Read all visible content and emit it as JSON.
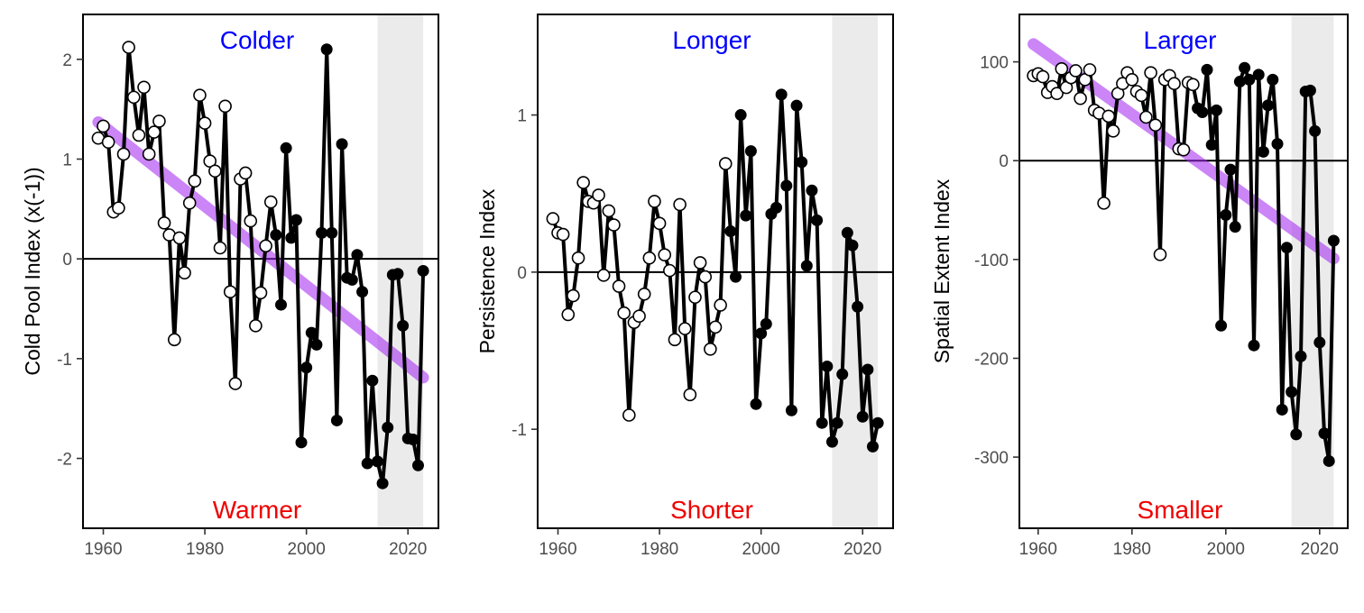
{
  "colors": {
    "top_annotation": "#0000ff",
    "bottom_annotation": "#ee0000",
    "trend": "#a020f0",
    "line": "#000000",
    "shade": "#ebebeb",
    "frame": "#000000"
  },
  "chart_data": [
    {
      "type": "line",
      "xlabel": "",
      "ylabel": "Cold Pool Index (x(-1))",
      "xlim": [
        1956,
        2026
      ],
      "ylim": [
        -2.7,
        2.45
      ],
      "xticks": [
        "1960",
        "1980",
        "2000",
        "2020"
      ],
      "yticks": [
        "-2",
        "-1",
        "0",
        "1",
        "2"
      ],
      "annotations": {
        "top": "Colder",
        "bottom": "Warmer"
      },
      "shaded_x": [
        2014,
        2023
      ],
      "hline": 0,
      "trend": {
        "x": [
          1959,
          2023
        ],
        "y": [
          1.37,
          -1.19
        ]
      },
      "open_until": 1993,
      "x": [
        1959,
        1960,
        1961,
        1962,
        1963,
        1964,
        1965,
        1966,
        1967,
        1968,
        1969,
        1970,
        1971,
        1972,
        1973,
        1974,
        1975,
        1976,
        1977,
        1978,
        1979,
        1980,
        1981,
        1982,
        1983,
        1984,
        1985,
        1986,
        1987,
        1988,
        1989,
        1990,
        1991,
        1992,
        1993,
        1994,
        1995,
        1996,
        1997,
        1998,
        1999,
        2000,
        2001,
        2002,
        2003,
        2004,
        2005,
        2006,
        2007,
        2008,
        2009,
        2010,
        2011,
        2012,
        2013,
        2014,
        2015,
        2016,
        2017,
        2018,
        2019,
        2020,
        2021,
        2022,
        2023
      ],
      "y": [
        1.21,
        1.33,
        1.17,
        0.47,
        0.51,
        1.05,
        2.12,
        1.62,
        1.24,
        1.72,
        1.05,
        1.27,
        1.38,
        0.36,
        0.24,
        -0.81,
        0.21,
        -0.14,
        0.56,
        0.78,
        1.64,
        1.36,
        0.98,
        0.88,
        0.11,
        1.53,
        -0.33,
        -1.25,
        0.8,
        0.86,
        0.38,
        -0.67,
        -0.34,
        0.13,
        0.57,
        0.24,
        -0.46,
        1.11,
        0.21,
        0.39,
        -1.84,
        -1.09,
        -0.74,
        -0.86,
        0.26,
        2.1,
        0.26,
        -1.62,
        1.15,
        -0.19,
        -0.21,
        0.04,
        -0.33,
        -2.05,
        -1.22,
        -2.03,
        -2.25,
        -1.69,
        -0.16,
        -0.15,
        -0.67,
        -1.8,
        -1.81,
        -2.07,
        -0.12
      ]
    },
    {
      "type": "line",
      "xlabel": "",
      "ylabel": "Persistence Index",
      "xlim": [
        1956,
        2026
      ],
      "ylim": [
        -1.63,
        1.64
      ],
      "xticks": [
        "1960",
        "1980",
        "2000",
        "2020"
      ],
      "yticks": [
        "-1",
        "0",
        "1"
      ],
      "annotations": {
        "top": "Longer",
        "bottom": "Shorter"
      },
      "shaded_x": [
        2014,
        2023
      ],
      "hline": 0,
      "trend": null,
      "open_until": 1993,
      "x": [
        1959,
        1960,
        1961,
        1962,
        1963,
        1964,
        1965,
        1966,
        1967,
        1968,
        1969,
        1970,
        1971,
        1972,
        1973,
        1974,
        1975,
        1976,
        1977,
        1978,
        1979,
        1980,
        1981,
        1982,
        1983,
        1984,
        1985,
        1986,
        1987,
        1988,
        1989,
        1990,
        1991,
        1992,
        1993,
        1994,
        1995,
        1996,
        1997,
        1998,
        1999,
        2000,
        2001,
        2002,
        2003,
        2004,
        2005,
        2006,
        2007,
        2008,
        2009,
        2010,
        2011,
        2012,
        2013,
        2014,
        2015,
        2016,
        2017,
        2018,
        2019,
        2020,
        2021,
        2022,
        2023
      ],
      "y": [
        0.34,
        0.25,
        0.24,
        -0.27,
        -0.15,
        0.09,
        0.57,
        0.45,
        0.44,
        0.49,
        -0.02,
        0.39,
        0.3,
        -0.09,
        -0.26,
        -0.91,
        -0.32,
        -0.28,
        -0.14,
        0.09,
        0.45,
        0.31,
        0.11,
        0.01,
        -0.43,
        0.43,
        -0.36,
        -0.78,
        -0.16,
        0.06,
        -0.03,
        -0.49,
        -0.35,
        -0.21,
        0.69,
        0.26,
        -0.03,
        1.0,
        0.36,
        0.77,
        -0.84,
        -0.39,
        -0.33,
        0.37,
        0.41,
        1.13,
        0.55,
        -0.88,
        1.06,
        0.7,
        0.04,
        0.52,
        0.33,
        -0.96,
        -0.6,
        -1.08,
        -0.96,
        -0.65,
        0.25,
        0.17,
        -0.22,
        -0.92,
        -0.62,
        -1.11,
        -0.96
      ]
    },
    {
      "type": "line",
      "xlabel": "",
      "ylabel": "Spatial Extent Index",
      "xlim": [
        1956,
        2026
      ],
      "ylim": [
        -372,
        148
      ],
      "xticks": [
        "1960",
        "1980",
        "2000",
        "2020"
      ],
      "yticks": [
        "-300",
        "-200",
        "-100",
        "0",
        "100"
      ],
      "annotations": {
        "top": "Larger",
        "bottom": "Smaller"
      },
      "shaded_x": [
        2014,
        2023
      ],
      "hline": 0,
      "trend": {
        "x": [
          1959,
          2023
        ],
        "y": [
          118,
          -99
        ]
      },
      "open_until": 1993,
      "x": [
        1959,
        1960,
        1961,
        1962,
        1963,
        1964,
        1965,
        1966,
        1967,
        1968,
        1969,
        1970,
        1971,
        1972,
        1973,
        1974,
        1975,
        1976,
        1977,
        1978,
        1979,
        1980,
        1981,
        1982,
        1983,
        1984,
        1985,
        1986,
        1987,
        1988,
        1989,
        1990,
        1991,
        1992,
        1993,
        1994,
        1995,
        1996,
        1997,
        1998,
        1999,
        2000,
        2001,
        2002,
        2003,
        2004,
        2005,
        2006,
        2007,
        2008,
        2009,
        2010,
        2011,
        2012,
        2013,
        2014,
        2015,
        2016,
        2017,
        2018,
        2019,
        2020,
        2021,
        2022,
        2023
      ],
      "y": [
        86,
        88,
        85,
        69,
        75,
        68,
        93,
        74,
        84,
        91,
        63,
        82,
        92,
        51,
        48,
        -43,
        45,
        30,
        68,
        78,
        89,
        82,
        70,
        66,
        44,
        89,
        36,
        -95,
        82,
        86,
        78,
        12,
        11,
        79,
        77,
        53,
        49,
        92,
        16,
        51,
        -167,
        -55,
        -9,
        -67,
        80,
        94,
        82,
        -187,
        87,
        9,
        56,
        82,
        17,
        -252,
        -88,
        -234,
        -277,
        -198,
        70,
        71,
        30,
        -184,
        -276,
        -304,
        -81
      ]
    }
  ]
}
